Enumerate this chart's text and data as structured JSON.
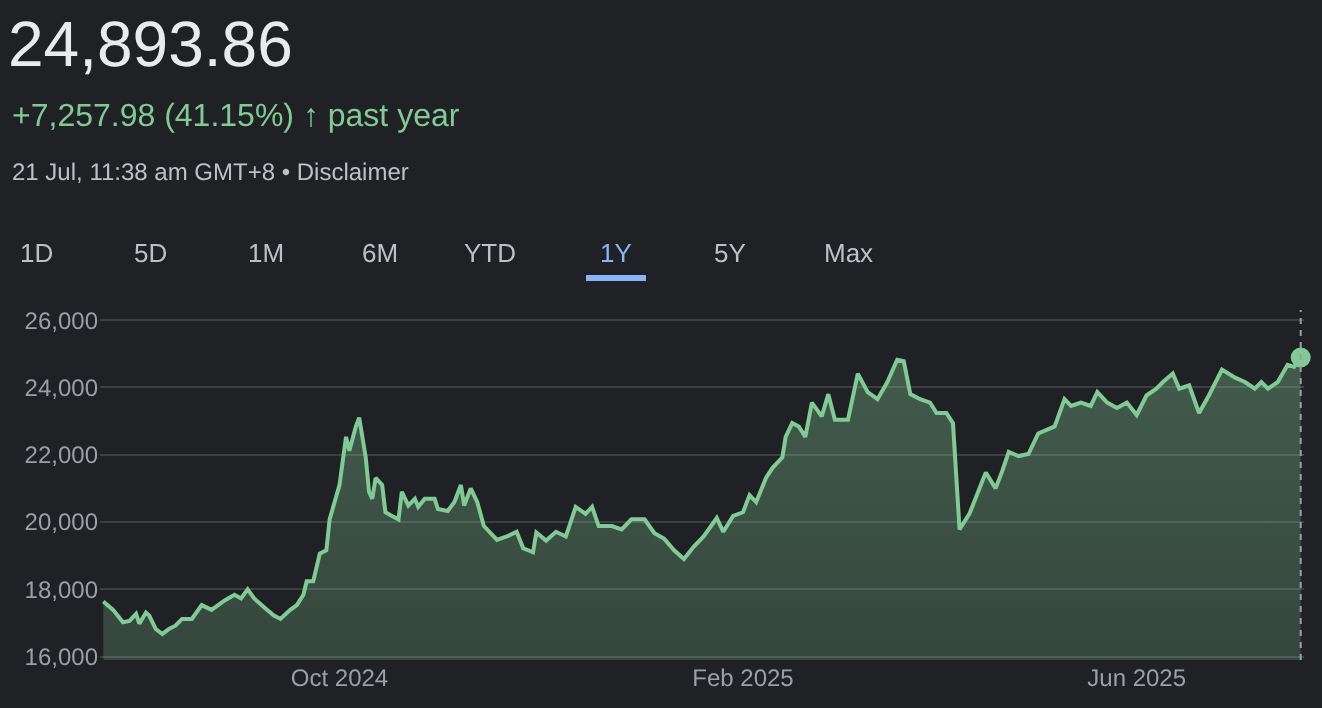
{
  "chart_data": {
    "type": "area",
    "title": "24,893.86",
    "subtitle": "+7,257.98 (41.15%) ↑ past year",
    "annotations": [
      "21 Jul, 11:38 am GMT+8 • Disclaimer",
      "1D",
      "5D",
      "1M",
      "6M",
      "YTD",
      "1Y",
      "5Y",
      "Max"
    ],
    "series": [
      {
        "color": "#81c995",
        "x": [
          "2024-07-21",
          "2024-07-24",
          "2024-07-27",
          "2024-07-29",
          "2024-07-31",
          "2024-08-01",
          "2024-08-03",
          "2024-08-04",
          "2024-08-06",
          "2024-08-08",
          "2024-08-10",
          "2024-08-12",
          "2024-08-14",
          "2024-08-17",
          "2024-08-20",
          "2024-08-23",
          "2024-08-27",
          "2024-08-30",
          "2024-09-01",
          "2024-09-03",
          "2024-09-05",
          "2024-09-08",
          "2024-09-11",
          "2024-09-13",
          "2024-09-16",
          "2024-09-18",
          "2024-09-20",
          "2024-09-21",
          "2024-09-23",
          "2024-09-25",
          "2024-09-27",
          "2024-09-28",
          "2024-10-01",
          "2024-10-03",
          "2024-10-04",
          "2024-10-06",
          "2024-10-07",
          "2024-10-09",
          "2024-10-10",
          "2024-10-11",
          "2024-10-12",
          "2024-10-14",
          "2024-10-15",
          "2024-10-17",
          "2024-10-19",
          "2024-10-20",
          "2024-10-22",
          "2024-10-24",
          "2024-10-25",
          "2024-10-27",
          "2024-10-30",
          "2024-10-31",
          "2024-11-03",
          "2024-11-05",
          "2024-11-07",
          "2024-11-08",
          "2024-11-10",
          "2024-11-12",
          "2024-11-14",
          "2024-11-15",
          "2024-11-18",
          "2024-11-21",
          "2024-11-24",
          "2024-11-26",
          "2024-11-29",
          "2024-11-30",
          "2024-12-03",
          "2024-12-06",
          "2024-12-09",
          "2024-12-12",
          "2024-12-15",
          "2024-12-17",
          "2024-12-19",
          "2024-12-23",
          "2024-12-26",
          "2024-12-29",
          "2025-01-02",
          "2025-01-05",
          "2025-01-08",
          "2025-01-11",
          "2025-01-14",
          "2025-01-17",
          "2025-01-20",
          "2025-01-24",
          "2025-01-26",
          "2025-01-29",
          "2025-02-01",
          "2025-02-03",
          "2025-02-05",
          "2025-02-08",
          "2025-02-10",
          "2025-02-13",
          "2025-02-14",
          "2025-02-16",
          "2025-02-18",
          "2025-02-20",
          "2025-02-22",
          "2025-02-25",
          "2025-02-27",
          "2025-03-01",
          "2025-03-05",
          "2025-03-08",
          "2025-03-11",
          "2025-03-14",
          "2025-03-17",
          "2025-03-20",
          "2025-03-22",
          "2025-03-24",
          "2025-03-27",
          "2025-03-30",
          "2025-04-01",
          "2025-04-04",
          "2025-04-06",
          "2025-04-08",
          "2025-04-11",
          "2025-04-16",
          "2025-04-19",
          "2025-04-21",
          "2025-04-23",
          "2025-04-26",
          "2025-04-29",
          "2025-05-02",
          "2025-05-07",
          "2025-05-10",
          "2025-05-12",
          "2025-05-15",
          "2025-05-18",
          "2025-05-20",
          "2025-05-23",
          "2025-05-26",
          "2025-05-29",
          "2025-06-01",
          "2025-06-04",
          "2025-06-07",
          "2025-06-09",
          "2025-06-12",
          "2025-06-14",
          "2025-06-17",
          "2025-06-20",
          "2025-06-23",
          "2025-06-27",
          "2025-07-01",
          "2025-07-04",
          "2025-07-07",
          "2025-07-09",
          "2025-07-11",
          "2025-07-14",
          "2025-07-17",
          "2025-07-19",
          "2025-07-21"
        ],
        "values": [
          17640,
          17390,
          17020,
          17060,
          17270,
          16980,
          17310,
          17220,
          16820,
          16670,
          16820,
          16920,
          17120,
          17120,
          17530,
          17390,
          17670,
          17840,
          17730,
          18000,
          17730,
          17470,
          17220,
          17120,
          17390,
          17530,
          17840,
          18240,
          18240,
          19060,
          19160,
          20080,
          21100,
          22530,
          22120,
          22840,
          23100,
          21920,
          20900,
          20690,
          21310,
          21100,
          20290,
          20180,
          20080,
          20900,
          20490,
          20690,
          20450,
          20690,
          20690,
          20390,
          20330,
          20590,
          21100,
          20490,
          21000,
          20590,
          19880,
          19780,
          19470,
          19570,
          19710,
          19220,
          19100,
          19690,
          19450,
          19710,
          19570,
          20450,
          20240,
          20450,
          19880,
          19880,
          19780,
          20080,
          20080,
          19670,
          19500,
          19160,
          18900,
          19270,
          19570,
          20120,
          19710,
          20180,
          20290,
          20800,
          20590,
          21310,
          21610,
          21920,
          22530,
          22940,
          22840,
          22530,
          23550,
          23140,
          23800,
          23040,
          23040,
          24410,
          23860,
          23650,
          24160,
          24820,
          24780,
          23800,
          23650,
          23550,
          23240,
          23240,
          22940,
          19780,
          20240,
          21470,
          21000,
          21510,
          22080,
          21960,
          22020,
          22630,
          22840,
          23650,
          23450,
          23550,
          23450,
          23860,
          23550,
          23390,
          23550,
          23180,
          23760,
          23960,
          24160,
          24410,
          23960,
          24060,
          23240,
          23760,
          24530,
          24290,
          24160,
          23960,
          24160,
          23960,
          24160,
          24670,
          24610,
          24890
        ]
      },
      {
        "type": "scatter",
        "color": "#81c995",
        "marker": "circle",
        "x": [
          "2025-07-21"
        ],
        "values": [
          24890
        ]
      }
    ],
    "ref_lines": [
      {
        "axis": "x",
        "value": "2025-07-21",
        "line_style": "dotted",
        "color": "#9aa0a6"
      }
    ],
    "xlim": [
      "2024-07-20",
      "2025-07-22"
    ],
    "xticks": [
      {
        "value": "2024-10-01",
        "label": "Oct 2024"
      },
      {
        "value": "2025-02-01",
        "label": "Feb 2025"
      },
      {
        "value": "2025-06-01",
        "label": "Jun 2025"
      }
    ],
    "ylim": [
      15900,
      26300
    ],
    "yticks": [
      {
        "value": 16000,
        "label": "16,000"
      },
      {
        "value": 18000,
        "label": "18,000"
      },
      {
        "value": 20000,
        "label": "20,000"
      },
      {
        "value": 22000,
        "label": "22,000"
      },
      {
        "value": 24000,
        "label": "24,000"
      },
      {
        "value": 26000,
        "label": "26,000"
      }
    ],
    "grid": "y"
  }
}
